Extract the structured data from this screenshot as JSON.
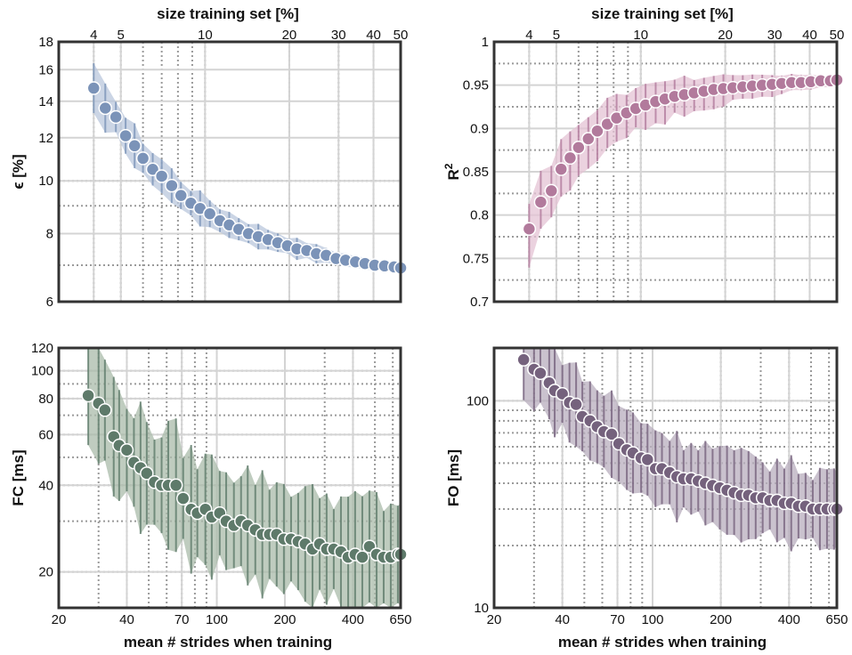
{
  "figure": {
    "top_label": "size training set [%]",
    "bottom_label": "mean # strides when training"
  },
  "chart_data": [
    {
      "id": "eps",
      "type": "scatter",
      "ylabel": "ϵ [%]",
      "xlabel_top": "size training set [%]",
      "yscale": "log",
      "ylim": [
        6,
        18
      ],
      "yticks": [
        6,
        8,
        10,
        12,
        14,
        16,
        18
      ],
      "xlim_pct": [
        3,
        50
      ],
      "xticks_pct": [
        4,
        5,
        10,
        20,
        30,
        40,
        50
      ],
      "color": "#7b93b8",
      "band_color": "#b9c7dc",
      "x_pct": [
        4.0,
        4.4,
        4.8,
        5.2,
        5.6,
        6.0,
        6.5,
        7.0,
        7.6,
        8.2,
        8.9,
        9.6,
        10.4,
        11.3,
        12.2,
        13.2,
        14.3,
        15.5,
        16.8,
        18.2,
        19.7,
        21.3,
        23.1,
        25.0,
        27.1,
        29.4,
        31.8,
        34.5,
        37.3,
        40.4,
        43.8,
        47.4,
        50.0
      ],
      "y": [
        14.8,
        13.6,
        13.1,
        12.1,
        11.6,
        11.0,
        10.5,
        10.2,
        9.8,
        9.4,
        9.1,
        8.9,
        8.7,
        8.45,
        8.3,
        8.15,
        8.0,
        7.9,
        7.8,
        7.7,
        7.6,
        7.5,
        7.45,
        7.35,
        7.3,
        7.2,
        7.15,
        7.1,
        7.05,
        7.0,
        6.98,
        6.95,
        6.92
      ]
    },
    {
      "id": "r2",
      "type": "scatter",
      "ylabel": "R",
      "ylabel_sup": "2",
      "xlabel_top": "size training set [%]",
      "yscale": "linear",
      "ylim": [
        0.7,
        1.0
      ],
      "yticks": [
        0.7,
        0.75,
        0.8,
        0.85,
        0.9,
        0.95,
        1
      ],
      "ytick_labels": [
        "0.7",
        "0.75",
        "0.8",
        "0.85",
        "0.9",
        "0.95",
        "1"
      ],
      "xlim_pct": [
        3,
        50
      ],
      "xticks_pct": [
        4,
        5,
        10,
        20,
        30,
        40,
        50
      ],
      "color": "#b27a9c",
      "band_color": "#e4c3d4",
      "x_pct": [
        4.0,
        4.4,
        4.8,
        5.2,
        5.6,
        6.0,
        6.5,
        7.0,
        7.6,
        8.2,
        8.9,
        9.6,
        10.4,
        11.3,
        12.2,
        13.2,
        14.3,
        15.5,
        16.8,
        18.2,
        19.7,
        21.3,
        23.1,
        25.0,
        27.1,
        29.4,
        31.8,
        34.5,
        37.3,
        40.4,
        43.8,
        47.4,
        50.0
      ],
      "y": [
        0.784,
        0.815,
        0.828,
        0.853,
        0.866,
        0.878,
        0.888,
        0.897,
        0.905,
        0.912,
        0.918,
        0.923,
        0.927,
        0.931,
        0.934,
        0.937,
        0.939,
        0.941,
        0.943,
        0.945,
        0.946,
        0.947,
        0.948,
        0.949,
        0.95,
        0.951,
        0.952,
        0.953,
        0.953,
        0.954,
        0.955,
        0.955,
        0.956
      ]
    },
    {
      "id": "fc",
      "type": "scatter",
      "ylabel": "FC [ms]",
      "xlabel": "mean # strides when training",
      "yscale": "log",
      "ylim": [
        15,
        120
      ],
      "yticks": [
        20,
        40,
        60,
        80,
        100,
        120
      ],
      "xlim_strides": [
        20,
        650
      ],
      "xticks_strides": [
        20,
        40,
        70,
        100,
        200,
        400,
        650
      ],
      "color": "#5e7a6a",
      "band_color": "#a9bba9",
      "x_strides": [
        27,
        30,
        32,
        35,
        37,
        40,
        43,
        46,
        49,
        53,
        57,
        61,
        66,
        71,
        77,
        82,
        89,
        95,
        103,
        110,
        119,
        128,
        137,
        148,
        159,
        171,
        184,
        198,
        213,
        229,
        246,
        265,
        285,
        306,
        329,
        354,
        381,
        409,
        440,
        473,
        509,
        547,
        588,
        632,
        650
      ],
      "y": [
        82,
        77,
        73,
        59,
        55,
        53,
        48,
        46,
        44,
        41,
        40,
        40,
        40,
        36,
        33,
        32,
        33,
        31,
        32,
        30,
        29,
        30,
        29,
        28,
        27,
        27,
        27,
        26,
        26,
        25.5,
        25,
        24,
        25,
        24,
        24,
        23.5,
        22.5,
        23,
        22.5,
        24.5,
        23,
        22.5,
        22.5,
        23,
        23
      ]
    },
    {
      "id": "fo",
      "type": "scatter",
      "ylabel": "FO [ms]",
      "xlabel": "mean # strides when training",
      "yscale": "log",
      "ylim": [
        10,
        180
      ],
      "yticks": [
        10,
        100
      ],
      "xlim_strides": [
        20,
        650
      ],
      "xticks_strides": [
        20,
        40,
        70,
        100,
        200,
        400,
        650
      ],
      "color": "#75627d",
      "band_color": "#b8aebd",
      "x_strides": [
        27,
        30,
        32,
        35,
        37,
        40,
        43,
        46,
        49,
        53,
        57,
        61,
        66,
        71,
        77,
        82,
        89,
        95,
        103,
        110,
        119,
        128,
        137,
        148,
        159,
        171,
        184,
        198,
        213,
        229,
        246,
        265,
        285,
        306,
        329,
        354,
        381,
        409,
        440,
        473,
        509,
        547,
        588,
        632,
        650
      ],
      "y": [
        158,
        142,
        136,
        122,
        112,
        108,
        98,
        96,
        84,
        80,
        75,
        71,
        69,
        62,
        58,
        56,
        53,
        52,
        47,
        47,
        45,
        43,
        42,
        42,
        41,
        40,
        39,
        38,
        37,
        36,
        35,
        35,
        34,
        34,
        33,
        33,
        32,
        32,
        31,
        31,
        30,
        30,
        30,
        30,
        30
      ]
    }
  ]
}
